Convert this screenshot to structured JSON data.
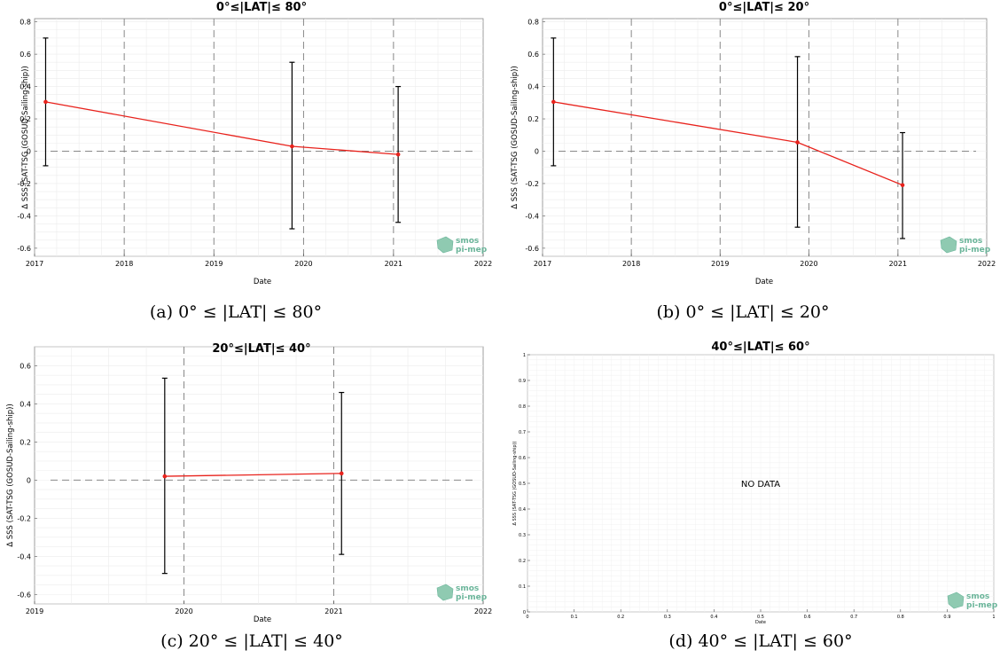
{
  "chart_data": [
    {
      "panel": "a",
      "type": "line",
      "title": "0°≤|LAT|≤ 80°",
      "caption": "(a) 0° ≤ |LAT| ≤ 80°",
      "xlabel": "Date",
      "ylabel": "Δ SSS (SAT-TSG (GOSUD-Sailing-ship))",
      "xticks": [
        "2017",
        "2018",
        "2019",
        "2020",
        "2021",
        "2022"
      ],
      "yticks": [
        "-0.6",
        "-0.4",
        "-0.2",
        "0",
        "0.2",
        "0.4",
        "0.6",
        "0.8"
      ],
      "xlim": [
        "2017-01-01",
        "2022-01-01"
      ],
      "ylim": [
        -0.65,
        0.82
      ],
      "series": [
        {
          "x": [
            "2017-02-15",
            "2019-11-15",
            "2021-01-20"
          ],
          "y": [
            0.305,
            0.03,
            -0.02
          ],
          "err_low": [
            -0.09,
            -0.48,
            -0.44
          ],
          "err_high": [
            0.7,
            0.55,
            0.4
          ]
        }
      ],
      "colors": {
        "line": "#e8221c",
        "errorbar": "#000000"
      },
      "grid": true,
      "logo": [
        "smos",
        "pi-mep"
      ]
    },
    {
      "panel": "b",
      "type": "line",
      "title": "0°≤|LAT|≤ 20°",
      "caption": "(b) 0° ≤ |LAT| ≤ 20°",
      "xlabel": "Date",
      "ylabel": "Δ SSS (SAT-TSG (GOSUD-Sailing-ship))",
      "xticks": [
        "2017",
        "2018",
        "2019",
        "2020",
        "2021",
        "2022"
      ],
      "yticks": [
        "-0.6",
        "-0.4",
        "-0.2",
        "0",
        "0.2",
        "0.4",
        "0.6",
        "0.8"
      ],
      "xlim": [
        "2017-01-01",
        "2022-01-01"
      ],
      "ylim": [
        -0.65,
        0.82
      ],
      "series": [
        {
          "x": [
            "2017-02-15",
            "2019-11-15",
            "2021-01-20"
          ],
          "y": [
            0.305,
            0.055,
            -0.21
          ],
          "err_low": [
            -0.09,
            -0.47,
            -0.54
          ],
          "err_high": [
            0.7,
            0.585,
            0.115
          ]
        }
      ],
      "colors": {
        "line": "#e8221c",
        "errorbar": "#000000"
      },
      "grid": true,
      "logo": [
        "smos",
        "pi-mep"
      ]
    },
    {
      "panel": "c",
      "type": "line",
      "title": "20°≤|LAT|≤ 40°",
      "caption": "(c) 20° ≤ |LAT| ≤ 40°",
      "xlabel": "Date",
      "ylabel": "Δ SSS (SAT-TSG (GOSUD-Sailing-ship))",
      "xticks": [
        "2019",
        "2020",
        "2021",
        "2022"
      ],
      "yticks": [
        "-0.6",
        "-0.4",
        "-0.2",
        "0",
        "0.2",
        "0.4",
        "0.6"
      ],
      "xlim": [
        "2019-01-01",
        "2022-01-01"
      ],
      "ylim": [
        -0.65,
        0.7
      ],
      "series": [
        {
          "x": [
            "2019-11-15",
            "2021-01-20"
          ],
          "y": [
            0.02,
            0.035
          ],
          "err_low": [
            -0.49,
            -0.39
          ],
          "err_high": [
            0.535,
            0.46
          ]
        }
      ],
      "colors": {
        "line": "#e8221c",
        "errorbar": "#000000"
      },
      "grid": true,
      "logo": [
        "smos",
        "pi-mep"
      ]
    },
    {
      "panel": "d",
      "type": "line",
      "title": "40°≤|LAT|≤ 60°",
      "caption": "(d) 40° ≤ |LAT| ≤ 60°",
      "xlabel": "Date",
      "ylabel": "Δ SSS (SAT-TSG (GOSUD-Sailing-ship))",
      "xticks": [
        "0",
        "0.1",
        "0.2",
        "0.3",
        "0.4",
        "0.5",
        "0.6",
        "0.7",
        "0.8",
        "0.9",
        "1"
      ],
      "yticks": [
        "0",
        "0.1",
        "0.2",
        "0.3",
        "0.4",
        "0.5",
        "0.6",
        "0.7",
        "0.8",
        "0.9",
        "1"
      ],
      "xlim": [
        0,
        1
      ],
      "ylim": [
        0,
        1
      ],
      "series": [],
      "annotation": "NO DATA",
      "grid": true,
      "logo": [
        "smos",
        "pi-mep"
      ]
    }
  ]
}
